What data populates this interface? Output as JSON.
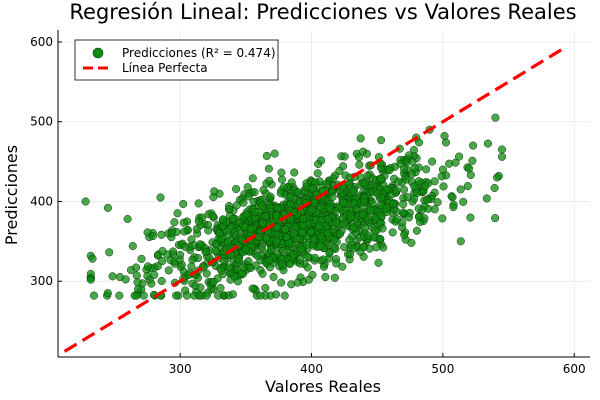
{
  "chart_data": {
    "type": "scatter",
    "title": "Regresión Lineal: Predicciones vs Valores Reales",
    "xlabel": "Valores Reales",
    "ylabel": "Predicciones",
    "xlim": [
      207,
      612
    ],
    "ylim": [
      205,
      615
    ],
    "xticks": [
      300,
      400,
      500,
      600
    ],
    "yticks": [
      300,
      400,
      500,
      600
    ],
    "grid": true,
    "legend_position": "top-left",
    "series": [
      {
        "name": "Predicciones (R² = 0.474)",
        "kind": "scatter",
        "color": "#0e8a0e",
        "stroke": "#0a3a0a",
        "points_description": "Dense cloud of approximately 1300 points spanning x≈228–545 and y≈280–505; center near (390, 370), correlation roughly 0.69",
        "sample_points": [
          {
            "x": 228,
            "y": 400
          },
          {
            "x": 245,
            "y": 392
          },
          {
            "x": 260,
            "y": 378
          },
          {
            "x": 268,
            "y": 290
          },
          {
            "x": 285,
            "y": 405
          },
          {
            "x": 300,
            "y": 333
          },
          {
            "x": 330,
            "y": 360
          },
          {
            "x": 350,
            "y": 340
          },
          {
            "x": 372,
            "y": 460
          },
          {
            "x": 380,
            "y": 365
          },
          {
            "x": 400,
            "y": 390
          },
          {
            "x": 430,
            "y": 380
          },
          {
            "x": 450,
            "y": 410
          },
          {
            "x": 476,
            "y": 348
          },
          {
            "x": 490,
            "y": 490
          },
          {
            "x": 500,
            "y": 440
          },
          {
            "x": 523,
            "y": 470
          },
          {
            "x": 540,
            "y": 505
          },
          {
            "x": 545,
            "y": 456
          }
        ]
      },
      {
        "name": "Línea Perfecta",
        "kind": "line",
        "color": "#ff0000",
        "dash": true,
        "x": [
          212,
          592
        ],
        "y": [
          212,
          592
        ]
      }
    ]
  }
}
